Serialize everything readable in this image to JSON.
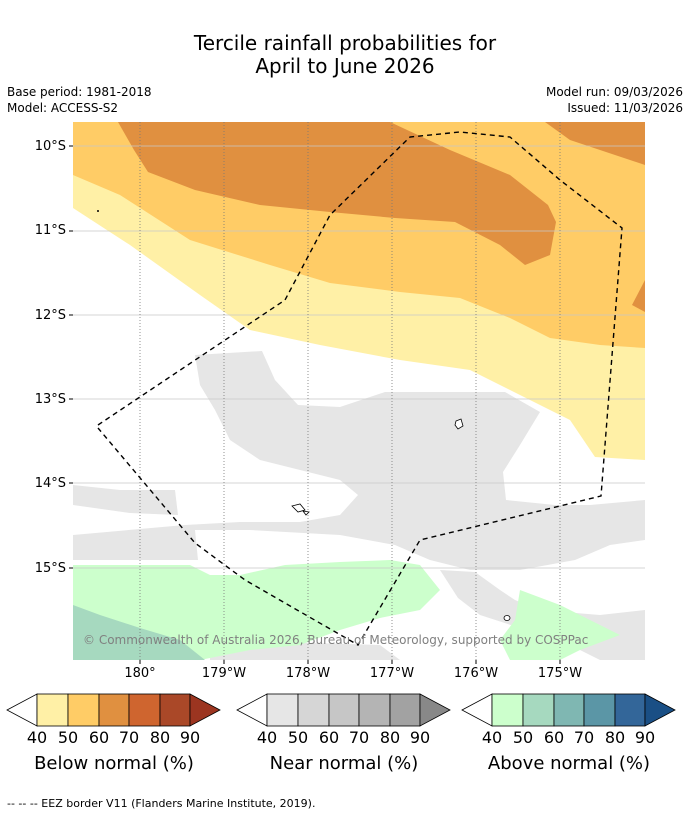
{
  "title": {
    "line1": "Tercile rainfall probabilities for",
    "line2": "April to June 2026"
  },
  "meta": {
    "base_period": "Base period: 1981-2018",
    "model": "Model: ACCESS-S2",
    "model_run": "Model run: 09/03/2026",
    "issued": "Issued: 11/03/2026"
  },
  "map": {
    "lat_labels": [
      "10°S",
      "11°S",
      "12°S",
      "13°S",
      "14°S",
      "15°S"
    ],
    "lon_labels": [
      "180°",
      "179°W",
      "178°W",
      "177°W",
      "176°W",
      "175°W"
    ],
    "attribution": "© Commonwealth of Australia 2026, Bureau of Meteorology, supported by COSPPac",
    "categories": {
      "below_normal": "#fff0a6",
      "below_50": "#ffcc66",
      "below_60": "#e09040",
      "near_normal": "#e6e6e6",
      "above_normal": "#ccffcc",
      "above_50": "#a6d9bf"
    }
  },
  "colorbars": [
    {
      "title": "Below normal (%)",
      "ticks": [
        "40",
        "50",
        "60",
        "70",
        "80",
        "90"
      ],
      "colors": [
        "#fff0a6",
        "#ffcc66",
        "#e09040",
        "#cf652f",
        "#aa4828",
        "#9c3520"
      ]
    },
    {
      "title": "Near normal (%)",
      "ticks": [
        "40",
        "50",
        "60",
        "70",
        "80",
        "90"
      ],
      "colors": [
        "#e6e6e6",
        "#d6d6d6",
        "#c6c6c6",
        "#b4b4b4",
        "#a2a2a2",
        "#888888"
      ]
    },
    {
      "title": "Above normal (%)",
      "ticks": [
        "40",
        "50",
        "60",
        "70",
        "80",
        "90"
      ],
      "colors": [
        "#ccffcc",
        "#a6d9bf",
        "#7fb7b2",
        "#5b96a6",
        "#336699",
        "#1a4f85"
      ]
    }
  ],
  "footer": "--  --  -- EEZ border V11 (Flanders Marine Institute, 2019)."
}
